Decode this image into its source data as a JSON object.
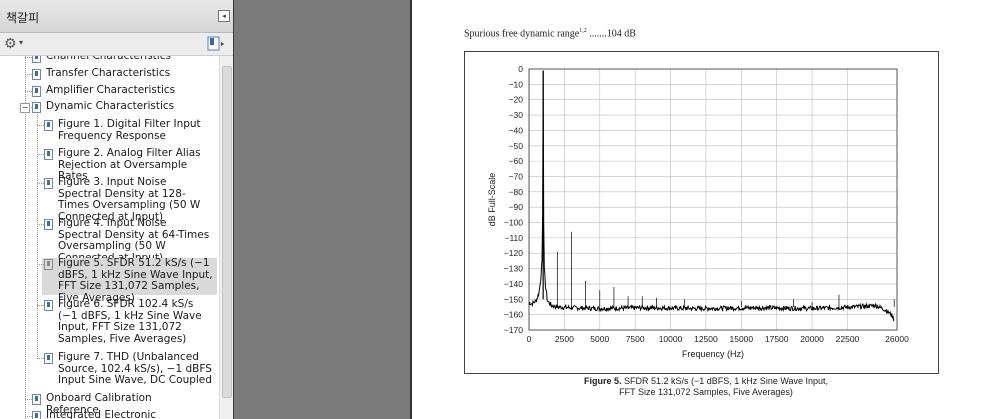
{
  "panel": {
    "title": "책갈피",
    "collapse_glyph": "◂",
    "options_glyph": "⚙",
    "options_caret": "▾"
  },
  "bookmarks": [
    {
      "text": "Channel Characteristics",
      "level": 1,
      "toggle": ""
    },
    {
      "text": "Transfer Characteristics",
      "level": 1,
      "toggle": ""
    },
    {
      "text": "Amplifier Characteristics",
      "level": 1,
      "toggle": ""
    },
    {
      "text": "Dynamic Characteristics",
      "level": 1,
      "toggle": "⊟"
    },
    {
      "text": "Figure 1. Digital Filter Input Frequency Response",
      "level": 2
    },
    {
      "text": "Figure 2. Analog Filter Alias Rejection at Oversample Rates",
      "level": 2
    },
    {
      "text": "Figure 3. Input Noise Spectral Density at 128-Times Oversampling (50 W Connected at Input)",
      "level": 2
    },
    {
      "text": "Figure 4. Input Noise Spectral Density at 64-Times Oversampling (50 W Connected at Input)",
      "level": 2
    },
    {
      "text": "Figure 5. SFDR 51.2 kS/s (−1 dBFS, 1 kHz Sine Wave Input, FFT Size 131,072 Samples, Five Averages)",
      "level": 2,
      "selected": true
    },
    {
      "text": "Figure 6. SFDR 102.4 kS/s (−1 dBFS, 1 kHz Sine Wave Input, FFT Size 131,072 Samples, Five Averages)",
      "level": 2
    },
    {
      "text": "Figure 7. THD (Unbalanced Source, 102.4 kS/s), −1 dBFS Input Sine Wave, DC Coupled",
      "level": 2
    },
    {
      "text": "Onboard Calibration Reference",
      "level": 1,
      "toggle": ""
    },
    {
      "text": "Integrated Electronic Piezoelectric",
      "level": 1,
      "toggle": ""
    }
  ],
  "document": {
    "spec_label": "Spurious free dynamic range",
    "spec_sup": "1,2",
    "spec_value": " .......104 dB",
    "caption_label": "Figure 5.",
    "caption_line1": "SFDR 51.2 kS/s (−1 dBFS, 1 kHz Sine Wave Input,",
    "caption_line2": "FFT Size 131,072 Samples, Five Averages)"
  },
  "chart_data": {
    "type": "line",
    "title": "",
    "xlabel": "Frequency (Hz)",
    "ylabel": "dB Full-Scale",
    "xlim": [
      0,
      26000
    ],
    "ylim": [
      -170,
      0
    ],
    "xticks": [
      0,
      2500,
      5000,
      7500,
      10000,
      12500,
      15000,
      17500,
      20000,
      22500,
      26000
    ],
    "yticks": [
      0,
      -10,
      -20,
      -30,
      -40,
      -50,
      -60,
      -70,
      -80,
      -90,
      -100,
      -110,
      -120,
      -130,
      -140,
      -150,
      -160,
      -170
    ],
    "grid": true,
    "line_color": "#000000",
    "noise_floor_db": -155,
    "series": [
      {
        "x": [
          0,
          200,
          500,
          700,
          850,
          950,
          1000,
          1050,
          1150,
          1300,
          1600,
          2000,
          3000,
          5000,
          8000,
          12000,
          16000,
          20000,
          23000,
          24500,
          25200,
          25600,
          25800
        ],
        "values": [
          -152,
          -153,
          -151,
          -146,
          -135,
          -120,
          -1,
          -125,
          -140,
          -151,
          -154,
          -155,
          -155.5,
          -156,
          -155.5,
          -156,
          -155.5,
          -156,
          -155,
          -154,
          -157,
          -160,
          -163
        ]
      }
    ],
    "spurs": [
      {
        "x": 2000,
        "y": -119
      },
      {
        "x": 3000,
        "y": -106
      },
      {
        "x": 4000,
        "y": -138
      },
      {
        "x": 5000,
        "y": -144
      },
      {
        "x": 6000,
        "y": -142
      },
      {
        "x": 7000,
        "y": -148
      },
      {
        "x": 8000,
        "y": -148
      },
      {
        "x": 9000,
        "y": -149
      },
      {
        "x": 11000,
        "y": -150
      },
      {
        "x": 15000,
        "y": -151
      },
      {
        "x": 18700,
        "y": -150
      },
      {
        "x": 20000,
        "y": -152
      },
      {
        "x": 21900,
        "y": -147
      },
      {
        "x": 25800,
        "y": -150
      }
    ]
  }
}
